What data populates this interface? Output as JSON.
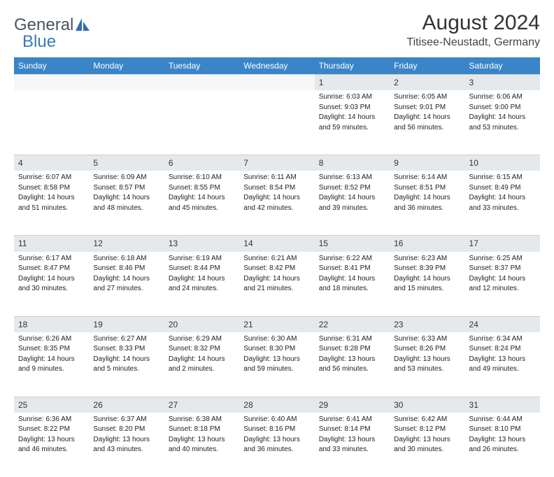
{
  "branding": {
    "word1": "General",
    "word2": "Blue",
    "logo_fill": "#2f6fab"
  },
  "header": {
    "month_title": "August 2024",
    "location": "Titisee-Neustadt, Germany"
  },
  "colors": {
    "header_bg": "#3a85c7",
    "header_text": "#ffffff",
    "daynum_bg": "#e6e9ec",
    "empty_bg": "#f6f7f8",
    "border": "#c9cfd4",
    "text": "#1a1a1a"
  },
  "weekdays": [
    "Sunday",
    "Monday",
    "Tuesday",
    "Wednesday",
    "Thursday",
    "Friday",
    "Saturday"
  ],
  "weeks": [
    [
      null,
      null,
      null,
      null,
      {
        "n": "1",
        "sr": "Sunrise: 6:03 AM",
        "ss": "Sunset: 9:03 PM",
        "d1": "Daylight: 14 hours",
        "d2": "and 59 minutes."
      },
      {
        "n": "2",
        "sr": "Sunrise: 6:05 AM",
        "ss": "Sunset: 9:01 PM",
        "d1": "Daylight: 14 hours",
        "d2": "and 56 minutes."
      },
      {
        "n": "3",
        "sr": "Sunrise: 6:06 AM",
        "ss": "Sunset: 9:00 PM",
        "d1": "Daylight: 14 hours",
        "d2": "and 53 minutes."
      }
    ],
    [
      {
        "n": "4",
        "sr": "Sunrise: 6:07 AM",
        "ss": "Sunset: 8:58 PM",
        "d1": "Daylight: 14 hours",
        "d2": "and 51 minutes."
      },
      {
        "n": "5",
        "sr": "Sunrise: 6:09 AM",
        "ss": "Sunset: 8:57 PM",
        "d1": "Daylight: 14 hours",
        "d2": "and 48 minutes."
      },
      {
        "n": "6",
        "sr": "Sunrise: 6:10 AM",
        "ss": "Sunset: 8:55 PM",
        "d1": "Daylight: 14 hours",
        "d2": "and 45 minutes."
      },
      {
        "n": "7",
        "sr": "Sunrise: 6:11 AM",
        "ss": "Sunset: 8:54 PM",
        "d1": "Daylight: 14 hours",
        "d2": "and 42 minutes."
      },
      {
        "n": "8",
        "sr": "Sunrise: 6:13 AM",
        "ss": "Sunset: 8:52 PM",
        "d1": "Daylight: 14 hours",
        "d2": "and 39 minutes."
      },
      {
        "n": "9",
        "sr": "Sunrise: 6:14 AM",
        "ss": "Sunset: 8:51 PM",
        "d1": "Daylight: 14 hours",
        "d2": "and 36 minutes."
      },
      {
        "n": "10",
        "sr": "Sunrise: 6:15 AM",
        "ss": "Sunset: 8:49 PM",
        "d1": "Daylight: 14 hours",
        "d2": "and 33 minutes."
      }
    ],
    [
      {
        "n": "11",
        "sr": "Sunrise: 6:17 AM",
        "ss": "Sunset: 8:47 PM",
        "d1": "Daylight: 14 hours",
        "d2": "and 30 minutes."
      },
      {
        "n": "12",
        "sr": "Sunrise: 6:18 AM",
        "ss": "Sunset: 8:46 PM",
        "d1": "Daylight: 14 hours",
        "d2": "and 27 minutes."
      },
      {
        "n": "13",
        "sr": "Sunrise: 6:19 AM",
        "ss": "Sunset: 8:44 PM",
        "d1": "Daylight: 14 hours",
        "d2": "and 24 minutes."
      },
      {
        "n": "14",
        "sr": "Sunrise: 6:21 AM",
        "ss": "Sunset: 8:42 PM",
        "d1": "Daylight: 14 hours",
        "d2": "and 21 minutes."
      },
      {
        "n": "15",
        "sr": "Sunrise: 6:22 AM",
        "ss": "Sunset: 8:41 PM",
        "d1": "Daylight: 14 hours",
        "d2": "and 18 minutes."
      },
      {
        "n": "16",
        "sr": "Sunrise: 6:23 AM",
        "ss": "Sunset: 8:39 PM",
        "d1": "Daylight: 14 hours",
        "d2": "and 15 minutes."
      },
      {
        "n": "17",
        "sr": "Sunrise: 6:25 AM",
        "ss": "Sunset: 8:37 PM",
        "d1": "Daylight: 14 hours",
        "d2": "and 12 minutes."
      }
    ],
    [
      {
        "n": "18",
        "sr": "Sunrise: 6:26 AM",
        "ss": "Sunset: 8:35 PM",
        "d1": "Daylight: 14 hours",
        "d2": "and 9 minutes."
      },
      {
        "n": "19",
        "sr": "Sunrise: 6:27 AM",
        "ss": "Sunset: 8:33 PM",
        "d1": "Daylight: 14 hours",
        "d2": "and 5 minutes."
      },
      {
        "n": "20",
        "sr": "Sunrise: 6:29 AM",
        "ss": "Sunset: 8:32 PM",
        "d1": "Daylight: 14 hours",
        "d2": "and 2 minutes."
      },
      {
        "n": "21",
        "sr": "Sunrise: 6:30 AM",
        "ss": "Sunset: 8:30 PM",
        "d1": "Daylight: 13 hours",
        "d2": "and 59 minutes."
      },
      {
        "n": "22",
        "sr": "Sunrise: 6:31 AM",
        "ss": "Sunset: 8:28 PM",
        "d1": "Daylight: 13 hours",
        "d2": "and 56 minutes."
      },
      {
        "n": "23",
        "sr": "Sunrise: 6:33 AM",
        "ss": "Sunset: 8:26 PM",
        "d1": "Daylight: 13 hours",
        "d2": "and 53 minutes."
      },
      {
        "n": "24",
        "sr": "Sunrise: 6:34 AM",
        "ss": "Sunset: 8:24 PM",
        "d1": "Daylight: 13 hours",
        "d2": "and 49 minutes."
      }
    ],
    [
      {
        "n": "25",
        "sr": "Sunrise: 6:36 AM",
        "ss": "Sunset: 8:22 PM",
        "d1": "Daylight: 13 hours",
        "d2": "and 46 minutes."
      },
      {
        "n": "26",
        "sr": "Sunrise: 6:37 AM",
        "ss": "Sunset: 8:20 PM",
        "d1": "Daylight: 13 hours",
        "d2": "and 43 minutes."
      },
      {
        "n": "27",
        "sr": "Sunrise: 6:38 AM",
        "ss": "Sunset: 8:18 PM",
        "d1": "Daylight: 13 hours",
        "d2": "and 40 minutes."
      },
      {
        "n": "28",
        "sr": "Sunrise: 6:40 AM",
        "ss": "Sunset: 8:16 PM",
        "d1": "Daylight: 13 hours",
        "d2": "and 36 minutes."
      },
      {
        "n": "29",
        "sr": "Sunrise: 6:41 AM",
        "ss": "Sunset: 8:14 PM",
        "d1": "Daylight: 13 hours",
        "d2": "and 33 minutes."
      },
      {
        "n": "30",
        "sr": "Sunrise: 6:42 AM",
        "ss": "Sunset: 8:12 PM",
        "d1": "Daylight: 13 hours",
        "d2": "and 30 minutes."
      },
      {
        "n": "31",
        "sr": "Sunrise: 6:44 AM",
        "ss": "Sunset: 8:10 PM",
        "d1": "Daylight: 13 hours",
        "d2": "and 26 minutes."
      }
    ]
  ]
}
